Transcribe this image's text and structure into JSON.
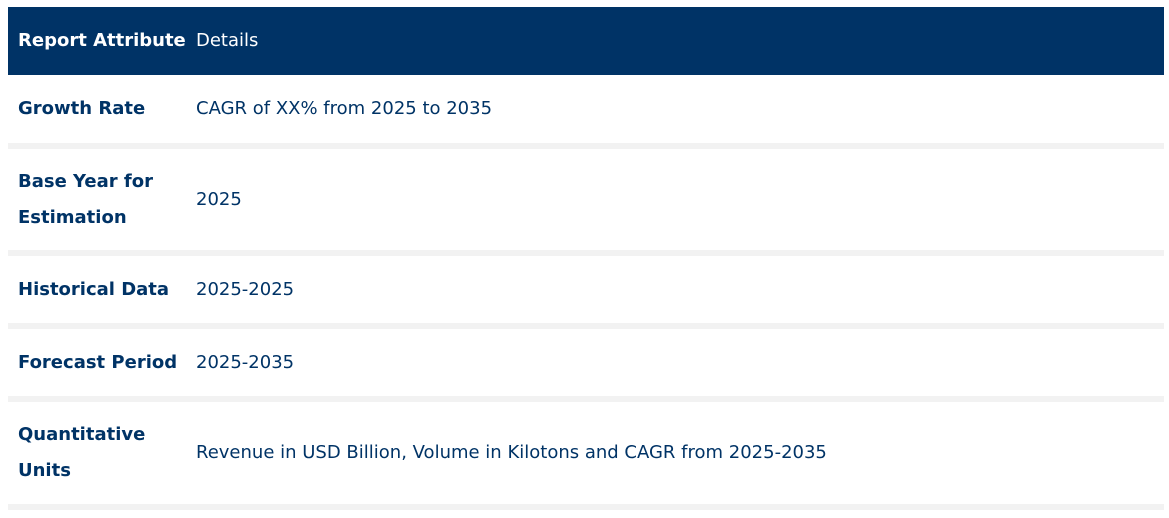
{
  "table": {
    "headers": [
      "Report Attribute",
      "Details"
    ],
    "rows": [
      {
        "attribute": "Growth Rate",
        "details": "CAGR of XX% from 2025 to 2035"
      },
      {
        "attribute": "Base Year for Estimation",
        "details": "2025"
      },
      {
        "attribute": "Historical Data",
        "details": "2025-2025"
      },
      {
        "attribute": "Forecast Period",
        "details": "2025-2035"
      },
      {
        "attribute": "Quantitative Units",
        "details": "Revenue in USD Billion, Volume in Kilotons and CAGR from 2025-2035"
      }
    ]
  },
  "colors": {
    "header_background": "#003366",
    "header_text": "#ffffff",
    "body_text": "#003366",
    "row_separator": "#f2f2f2"
  }
}
